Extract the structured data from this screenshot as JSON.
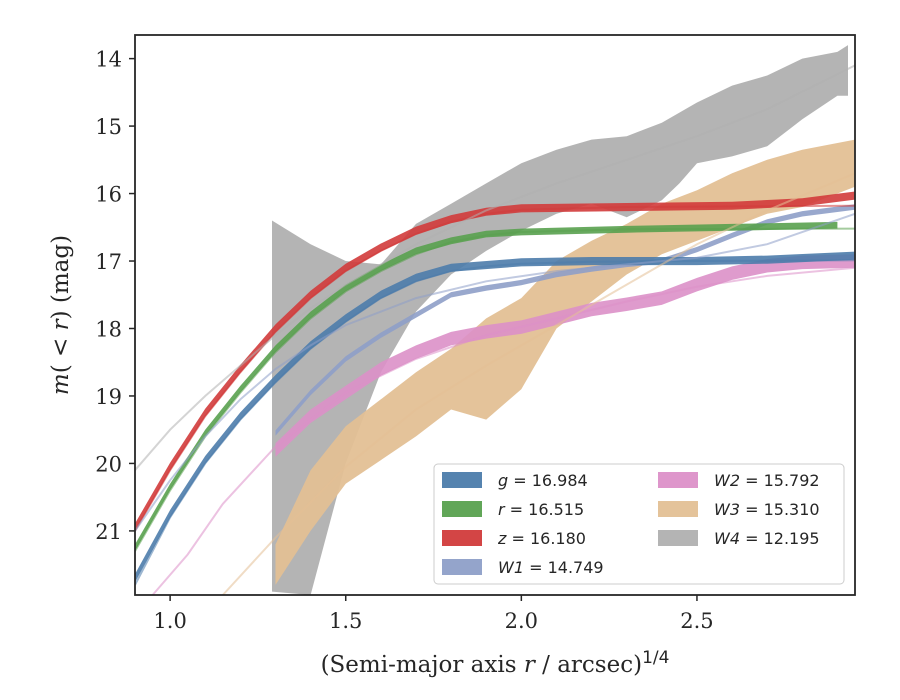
{
  "chart_data": {
    "type": "line",
    "xlabel": "(Semi-major axis r / arcsec)^{1/4}",
    "xlabel_parts": {
      "main": "(Semi-major axis ",
      "var": "r",
      "rest": " / arcsec)",
      "sup": "1/4"
    },
    "ylabel": "m(< r) (mag)",
    "ylabel_parts": {
      "var": "m",
      "paren_open": "( < ",
      "var2": "r",
      "rest": ") (mag)"
    },
    "xlim": [
      0.9,
      2.95
    ],
    "ylim": [
      21.95,
      13.65
    ],
    "y_inverted": true,
    "xticks": [
      1.0,
      1.5,
      2.0,
      2.5
    ],
    "xtick_labels": [
      "1.0",
      "1.5",
      "2.0",
      "2.5"
    ],
    "yticks": [
      14,
      15,
      16,
      17,
      18,
      19,
      20,
      21
    ],
    "ytick_labels": [
      "14",
      "15",
      "16",
      "17",
      "18",
      "19",
      "20",
      "21"
    ],
    "grid": false,
    "legend_position": "lower-right",
    "legend_columns": 2,
    "series": [
      {
        "name": "g = 16.984",
        "label_var": "g",
        "label_val": "= 16.984",
        "color": "#4c7cab",
        "model": [
          [
            0.9,
            21.8
          ],
          [
            1.0,
            20.8
          ],
          [
            1.1,
            20.0
          ],
          [
            1.2,
            19.35
          ],
          [
            1.3,
            18.8
          ],
          [
            1.4,
            18.3
          ],
          [
            1.5,
            17.9
          ],
          [
            1.6,
            17.55
          ],
          [
            1.7,
            17.3
          ],
          [
            1.8,
            17.15
          ],
          [
            1.9,
            17.08
          ],
          [
            2.0,
            17.04
          ],
          [
            2.2,
            17.01
          ],
          [
            2.5,
            17.0
          ],
          [
            2.95,
            16.99
          ]
        ],
        "data": [
          [
            0.9,
            21.7
          ],
          [
            1.0,
            20.75
          ],
          [
            1.1,
            19.95
          ],
          [
            1.2,
            19.3
          ],
          [
            1.3,
            18.75
          ],
          [
            1.4,
            18.25
          ],
          [
            1.5,
            17.85
          ],
          [
            1.6,
            17.5
          ],
          [
            1.7,
            17.25
          ],
          [
            1.8,
            17.1
          ],
          [
            2.0,
            17.02
          ],
          [
            2.2,
            17.0
          ],
          [
            2.5,
            17.0
          ],
          [
            2.7,
            16.98
          ],
          [
            2.95,
            16.92
          ]
        ],
        "half_width": 0.06
      },
      {
        "name": "r = 16.515",
        "label_var": "r",
        "label_val": "= 16.515",
        "color": "#59a14f",
        "model": [
          [
            0.9,
            21.3
          ],
          [
            1.0,
            20.4
          ],
          [
            1.1,
            19.6
          ],
          [
            1.2,
            18.95
          ],
          [
            1.3,
            18.35
          ],
          [
            1.4,
            17.85
          ],
          [
            1.5,
            17.45
          ],
          [
            1.6,
            17.15
          ],
          [
            1.7,
            16.9
          ],
          [
            1.8,
            16.72
          ],
          [
            1.9,
            16.62
          ],
          [
            2.0,
            16.57
          ],
          [
            2.3,
            16.53
          ],
          [
            2.95,
            16.52
          ]
        ],
        "data": [
          [
            0.9,
            21.25
          ],
          [
            1.0,
            20.35
          ],
          [
            1.1,
            19.55
          ],
          [
            1.2,
            18.9
          ],
          [
            1.3,
            18.3
          ],
          [
            1.4,
            17.8
          ],
          [
            1.5,
            17.4
          ],
          [
            1.6,
            17.1
          ],
          [
            1.7,
            16.85
          ],
          [
            1.8,
            16.7
          ],
          [
            1.9,
            16.6
          ],
          [
            2.0,
            16.57
          ],
          [
            2.3,
            16.53
          ],
          [
            2.6,
            16.5
          ],
          [
            2.9,
            16.47
          ]
        ],
        "half_width": 0.05
      },
      {
        "name": "z = 16.180",
        "label_var": "z",
        "label_val": "= 16.180",
        "color": "#d13b3b",
        "model": [
          [
            0.9,
            21.0
          ],
          [
            1.0,
            20.1
          ],
          [
            1.1,
            19.3
          ],
          [
            1.2,
            18.65
          ],
          [
            1.3,
            18.05
          ],
          [
            1.4,
            17.55
          ],
          [
            1.5,
            17.15
          ],
          [
            1.6,
            16.85
          ],
          [
            1.7,
            16.6
          ],
          [
            1.8,
            16.42
          ],
          [
            1.9,
            16.3
          ],
          [
            2.0,
            16.24
          ],
          [
            2.3,
            16.2
          ],
          [
            2.95,
            16.18
          ]
        ],
        "data": [
          [
            0.9,
            20.95
          ],
          [
            1.0,
            20.05
          ],
          [
            1.1,
            19.25
          ],
          [
            1.2,
            18.6
          ],
          [
            1.3,
            18.0
          ],
          [
            1.4,
            17.5
          ],
          [
            1.5,
            17.1
          ],
          [
            1.6,
            16.8
          ],
          [
            1.7,
            16.55
          ],
          [
            1.8,
            16.38
          ],
          [
            1.9,
            16.27
          ],
          [
            2.0,
            16.22
          ],
          [
            2.3,
            16.2
          ],
          [
            2.6,
            16.18
          ],
          [
            2.8,
            16.13
          ],
          [
            2.95,
            16.03
          ]
        ],
        "half_width": 0.06
      },
      {
        "name": "W1 = 14.749",
        "label_var": "W1",
        "label_val": "= 14.749",
        "color": "#8e9fc8",
        "model": [
          [
            0.9,
            21.0
          ],
          [
            1.0,
            20.25
          ],
          [
            1.1,
            19.6
          ],
          [
            1.2,
            19.05
          ],
          [
            1.3,
            18.6
          ],
          [
            1.4,
            18.25
          ],
          [
            1.5,
            17.95
          ],
          [
            1.7,
            17.55
          ],
          [
            1.9,
            17.3
          ],
          [
            2.1,
            17.15
          ],
          [
            2.3,
            17.05
          ],
          [
            2.5,
            16.95
          ],
          [
            2.7,
            16.75
          ],
          [
            2.95,
            16.3
          ]
        ],
        "data": [
          [
            1.3,
            19.55
          ],
          [
            1.4,
            18.95
          ],
          [
            1.5,
            18.45
          ],
          [
            1.6,
            18.1
          ],
          [
            1.7,
            17.8
          ],
          [
            1.8,
            17.5
          ],
          [
            1.9,
            17.4
          ],
          [
            2.0,
            17.32
          ],
          [
            2.1,
            17.2
          ],
          [
            2.2,
            17.12
          ],
          [
            2.3,
            17.05
          ],
          [
            2.4,
            17.0
          ],
          [
            2.5,
            16.83
          ],
          [
            2.6,
            16.62
          ],
          [
            2.7,
            16.42
          ],
          [
            2.8,
            16.3
          ],
          [
            2.95,
            16.2
          ]
        ],
        "half_width": 0.04
      },
      {
        "name": "W2 = 15.792",
        "label_var": "W2",
        "label_val": "= 15.792",
        "color": "#dc90c8",
        "model": [
          [
            0.95,
            21.95
          ],
          [
            1.05,
            21.35
          ],
          [
            1.15,
            20.6
          ],
          [
            1.3,
            19.75
          ],
          [
            1.5,
            18.95
          ],
          [
            1.7,
            18.45
          ],
          [
            1.9,
            18.1
          ],
          [
            2.1,
            17.85
          ],
          [
            2.3,
            17.6
          ],
          [
            2.5,
            17.38
          ],
          [
            2.7,
            17.22
          ],
          [
            2.95,
            17.1
          ]
        ],
        "data": [
          [
            1.3,
            19.8
          ],
          [
            1.4,
            19.3
          ],
          [
            1.5,
            18.95
          ],
          [
            1.6,
            18.6
          ],
          [
            1.7,
            18.35
          ],
          [
            1.8,
            18.15
          ],
          [
            1.9,
            18.05
          ],
          [
            2.0,
            17.98
          ],
          [
            2.1,
            17.85
          ],
          [
            2.2,
            17.72
          ],
          [
            2.3,
            17.64
          ],
          [
            2.4,
            17.55
          ],
          [
            2.5,
            17.35
          ],
          [
            2.6,
            17.18
          ],
          [
            2.7,
            17.07
          ],
          [
            2.8,
            17.02
          ],
          [
            2.95,
            17.0
          ]
        ],
        "half_width": 0.1
      },
      {
        "name": "W3 = 15.310",
        "label_var": "W3",
        "label_val": "= 15.310",
        "color": "#e3c095",
        "model": [
          [
            1.15,
            21.95
          ],
          [
            1.3,
            21.1
          ],
          [
            1.5,
            20.05
          ],
          [
            1.7,
            19.2
          ],
          [
            1.9,
            18.55
          ],
          [
            2.1,
            17.95
          ],
          [
            2.3,
            17.35
          ],
          [
            2.5,
            16.75
          ],
          [
            2.7,
            16.25
          ],
          [
            2.95,
            15.7
          ]
        ],
        "upper": [
          [
            1.3,
            21.2
          ],
          [
            1.4,
            20.1
          ],
          [
            1.5,
            19.45
          ],
          [
            1.6,
            19.05
          ],
          [
            1.7,
            18.65
          ],
          [
            1.8,
            18.3
          ],
          [
            1.9,
            17.85
          ],
          [
            2.0,
            17.55
          ],
          [
            2.1,
            17.0
          ],
          [
            2.2,
            16.7
          ],
          [
            2.3,
            16.45
          ],
          [
            2.4,
            16.15
          ],
          [
            2.5,
            15.95
          ],
          [
            2.6,
            15.7
          ],
          [
            2.7,
            15.5
          ],
          [
            2.8,
            15.35
          ],
          [
            2.95,
            15.2
          ]
        ],
        "lower": [
          [
            1.3,
            21.8
          ],
          [
            1.4,
            21.0
          ],
          [
            1.5,
            20.3
          ],
          [
            1.6,
            19.95
          ],
          [
            1.7,
            19.6
          ],
          [
            1.8,
            19.2
          ],
          [
            1.9,
            19.35
          ],
          [
            2.0,
            18.9
          ],
          [
            2.1,
            18.0
          ],
          [
            2.2,
            17.6
          ],
          [
            2.3,
            17.2
          ],
          [
            2.4,
            16.9
          ],
          [
            2.5,
            16.7
          ],
          [
            2.6,
            16.5
          ],
          [
            2.7,
            16.3
          ],
          [
            2.8,
            16.2
          ],
          [
            2.95,
            15.9
          ]
        ]
      },
      {
        "name": "W4 = 12.195",
        "label_var": "W4",
        "label_val": "= 12.195",
        "color": "#b0b0b0",
        "model": [
          [
            0.9,
            20.1
          ],
          [
            1.0,
            19.5
          ],
          [
            1.1,
            19.0
          ],
          [
            1.2,
            18.55
          ],
          [
            1.3,
            18.1
          ],
          [
            1.4,
            17.7
          ],
          [
            1.5,
            17.35
          ],
          [
            1.7,
            16.75
          ],
          [
            1.9,
            16.25
          ],
          [
            2.1,
            15.85
          ],
          [
            2.3,
            15.5
          ],
          [
            2.5,
            15.15
          ],
          [
            2.7,
            14.75
          ],
          [
            2.95,
            14.1
          ]
        ],
        "upper": [
          [
            1.29,
            16.4
          ],
          [
            1.4,
            16.75
          ],
          [
            1.5,
            17.0
          ],
          [
            1.6,
            17.05
          ],
          [
            1.7,
            16.45
          ],
          [
            1.8,
            16.15
          ],
          [
            1.9,
            15.85
          ],
          [
            2.0,
            15.55
          ],
          [
            2.1,
            15.35
          ],
          [
            2.2,
            15.2
          ],
          [
            2.3,
            15.15
          ],
          [
            2.4,
            14.95
          ],
          [
            2.5,
            14.65
          ],
          [
            2.6,
            14.4
          ],
          [
            2.7,
            14.25
          ],
          [
            2.8,
            14.0
          ],
          [
            2.9,
            13.9
          ],
          [
            2.93,
            13.8
          ]
        ],
        "lower": [
          [
            1.29,
            21.9
          ],
          [
            1.4,
            21.95
          ],
          [
            1.5,
            20.0
          ],
          [
            1.6,
            18.65
          ],
          [
            1.7,
            17.75
          ],
          [
            1.8,
            17.2
          ],
          [
            1.9,
            16.85
          ],
          [
            2.0,
            16.55
          ],
          [
            2.1,
            16.3
          ],
          [
            2.2,
            16.15
          ],
          [
            2.3,
            16.35
          ],
          [
            2.4,
            16.1
          ],
          [
            2.45,
            15.85
          ],
          [
            2.5,
            15.55
          ],
          [
            2.6,
            15.45
          ],
          [
            2.7,
            15.3
          ],
          [
            2.8,
            14.9
          ],
          [
            2.9,
            14.55
          ],
          [
            2.93,
            14.55
          ]
        ]
      }
    ]
  }
}
